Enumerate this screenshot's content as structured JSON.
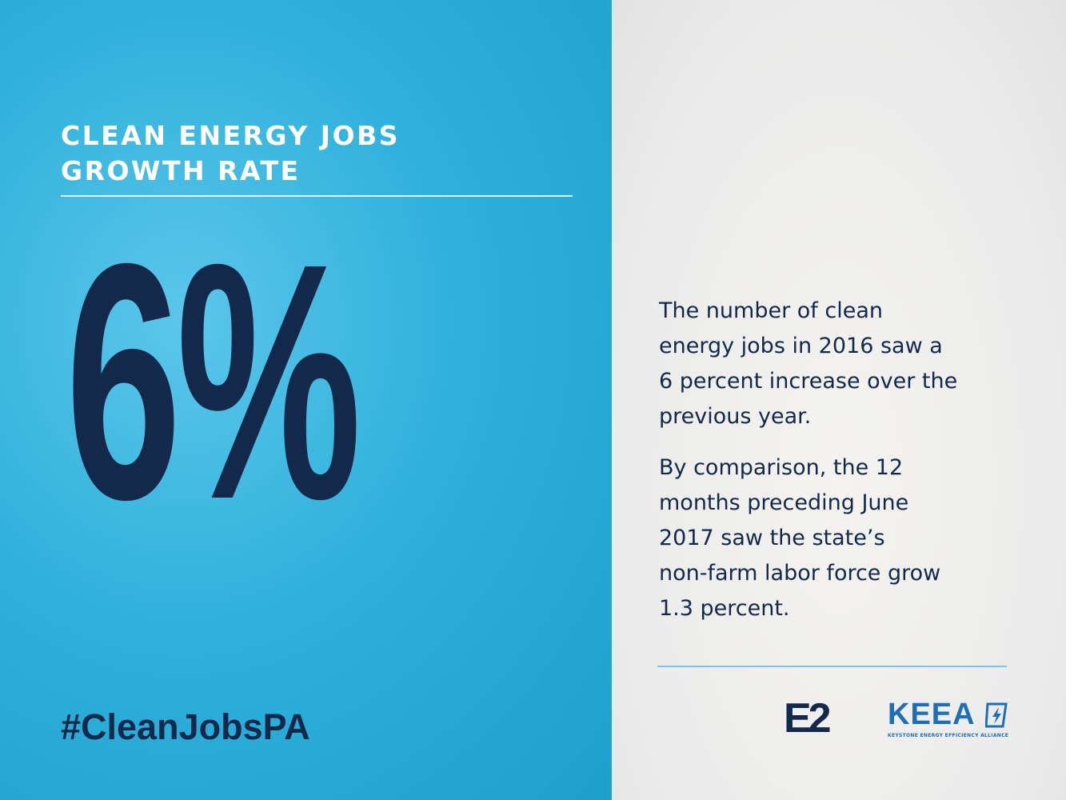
{
  "header": {
    "title_lines": [
      "CLEAN ENERGY JOBS",
      "GROWTH RATE"
    ]
  },
  "stat": "6%",
  "hashtag": "#CleanJobsPA",
  "body": {
    "paragraphs": [
      [
        "The number of clean",
        "energy jobs in 2016 saw a",
        "6 percent increase over the",
        "previous year."
      ],
      [
        "By comparison, the 12",
        "months preceding June",
        "2017 saw the state’s",
        "non-farm labor force grow",
        "1.3 percent."
      ]
    ]
  },
  "logos": {
    "e2": "E2",
    "keea": "KEEA",
    "keea_subtitle": "KEYSTONE ENERGY EFFICIENCY ALLIANCE"
  }
}
